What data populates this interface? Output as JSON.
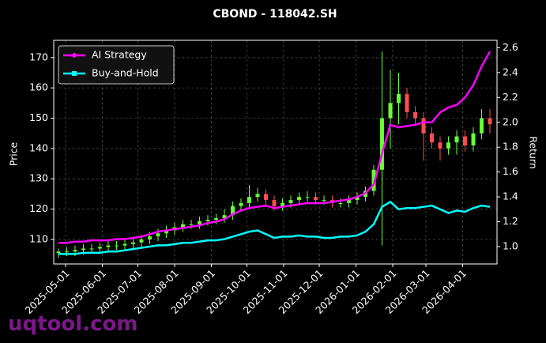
{
  "chart_data": {
    "type": "candlestick",
    "title": "CBOND - 118042.SH",
    "ylabel": "Price",
    "y2label": "Return",
    "watermark": "uqtool.com",
    "x": [
      "2025-04-25",
      "2025-05-02",
      "2025-05-09",
      "2025-05-16",
      "2025-05-23",
      "2025-05-30",
      "2025-06-06",
      "2025-06-13",
      "2025-06-20",
      "2025-06-27",
      "2025-07-04",
      "2025-07-11",
      "2025-07-18",
      "2025-07-25",
      "2025-08-01",
      "2025-08-08",
      "2025-08-15",
      "2025-08-22",
      "2025-08-29",
      "2025-09-05",
      "2025-09-12",
      "2025-09-19",
      "2025-09-26",
      "2025-10-03",
      "2025-10-10",
      "2025-10-17",
      "2025-10-24",
      "2025-10-31",
      "2025-11-07",
      "2025-11-14",
      "2025-11-21",
      "2025-11-28",
      "2025-12-05",
      "2025-12-12",
      "2025-12-19",
      "2025-12-26",
      "2026-01-02",
      "2026-01-09",
      "2026-01-16",
      "2026-01-23",
      "2026-01-30",
      "2026-02-06",
      "2026-02-13",
      "2026-02-20",
      "2026-02-27",
      "2026-03-06",
      "2026-03-13",
      "2026-03-20",
      "2026-03-27",
      "2026-04-03",
      "2026-04-10",
      "2026-04-17",
      "2026-04-24"
    ],
    "open": [
      105.5,
      106,
      106,
      106.5,
      107,
      107,
      107.5,
      108,
      108,
      108.5,
      109,
      110,
      111,
      112,
      113,
      114,
      115,
      115,
      116,
      116.5,
      117,
      118,
      121,
      122,
      124,
      125,
      123,
      121,
      122,
      123,
      124,
      124,
      123,
      123,
      122,
      122,
      123,
      124,
      126,
      133,
      150,
      155,
      158,
      152,
      150,
      145,
      142,
      140,
      142,
      144,
      141,
      145,
      150
    ],
    "high": [
      107,
      107.5,
      108,
      108.5,
      108.5,
      109,
      109.5,
      109.5,
      110,
      110.5,
      111.5,
      112.5,
      113.5,
      114.5,
      115.5,
      116.5,
      116.5,
      117.5,
      118,
      118.5,
      120,
      122.5,
      123.5,
      128,
      127,
      126.5,
      124.5,
      123.5,
      124.5,
      125.5,
      126,
      125.5,
      124.5,
      124.5,
      123.5,
      124.5,
      125.5,
      127.5,
      134.5,
      172,
      166,
      165,
      160,
      154,
      152,
      147,
      144,
      144,
      146,
      146,
      147,
      153,
      153
    ],
    "low": [
      104,
      104.5,
      104.5,
      105,
      105.5,
      105.5,
      106,
      106.5,
      106.5,
      107,
      107.5,
      108.5,
      109.5,
      110.5,
      111.5,
      112.5,
      113.5,
      113.5,
      114.5,
      115,
      115.5,
      116.5,
      119.5,
      120.5,
      122.5,
      121.5,
      119.5,
      119.5,
      120.5,
      121.5,
      122.5,
      121.5,
      121.5,
      120.5,
      120.5,
      120.5,
      121.5,
      122.5,
      124.5,
      108,
      140,
      148,
      150,
      148,
      136,
      140,
      136,
      138,
      138,
      139,
      139,
      143,
      145
    ],
    "close": [
      106,
      106,
      106.5,
      107,
      107,
      107.5,
      108,
      108,
      108.5,
      109,
      110,
      111,
      112,
      113,
      114,
      115,
      115,
      116,
      116.5,
      117,
      118,
      121,
      122,
      124,
      125,
      123,
      121,
      122,
      123,
      124,
      124,
      123,
      123,
      122,
      122,
      123,
      124,
      126,
      133,
      150,
      155,
      158,
      152,
      150,
      145,
      142,
      140,
      142,
      144,
      141,
      145,
      150,
      148
    ],
    "up_color": "#66ff33",
    "down_color": "#ff4d4d",
    "series": [
      {
        "name": "AI Strategy",
        "color": "#ff00ff",
        "marker": "circle",
        "axis": "y2",
        "values": [
          1.03,
          1.03,
          1.04,
          1.04,
          1.05,
          1.05,
          1.05,
          1.06,
          1.06,
          1.07,
          1.08,
          1.1,
          1.12,
          1.13,
          1.14,
          1.15,
          1.16,
          1.17,
          1.19,
          1.2,
          1.22,
          1.26,
          1.29,
          1.31,
          1.32,
          1.33,
          1.31,
          1.32,
          1.33,
          1.34,
          1.35,
          1.35,
          1.35,
          1.36,
          1.37,
          1.38,
          1.4,
          1.43,
          1.5,
          1.75,
          1.98,
          1.96,
          1.97,
          1.98,
          2.0,
          2.0,
          2.08,
          2.12,
          2.14,
          2.2,
          2.3,
          2.45,
          2.57
        ]
      },
      {
        "name": "Buy-and-Hold",
        "color": "#00ffff",
        "marker": "square",
        "axis": "y2",
        "values": [
          0.94,
          0.94,
          0.94,
          0.95,
          0.95,
          0.95,
          0.96,
          0.96,
          0.97,
          0.98,
          0.99,
          1.0,
          1.01,
          1.01,
          1.02,
          1.03,
          1.03,
          1.04,
          1.05,
          1.05,
          1.06,
          1.08,
          1.1,
          1.12,
          1.13,
          1.1,
          1.07,
          1.08,
          1.08,
          1.09,
          1.08,
          1.08,
          1.07,
          1.07,
          1.08,
          1.08,
          1.09,
          1.12,
          1.18,
          1.32,
          1.36,
          1.3,
          1.31,
          1.31,
          1.32,
          1.33,
          1.3,
          1.27,
          1.29,
          1.28,
          1.31,
          1.33,
          1.32
        ]
      }
    ],
    "xlim": [
      "2025-04-21",
      "2026-04-30"
    ],
    "xticks": [
      "2025-05-01",
      "2025-06-01",
      "2025-07-01",
      "2025-08-01",
      "2025-09-01",
      "2025-10-01",
      "2025-11-01",
      "2025-12-01",
      "2026-01-01",
      "2026-02-01",
      "2026-03-01",
      "2026-04-01"
    ],
    "ylim": [
      101.9,
      175.7
    ],
    "yticks": [
      110,
      120,
      130,
      140,
      150,
      160,
      170
    ],
    "y2lim": [
      0.86,
      2.66
    ],
    "y2ticks": [
      {
        "value": 1,
        "label": "1.0"
      },
      1.2,
      1.4,
      1.6,
      1.8,
      {
        "value": 2,
        "label": "2.0"
      },
      2.2,
      2.4,
      2.6
    ],
    "grid": true,
    "legend": "upper left"
  }
}
